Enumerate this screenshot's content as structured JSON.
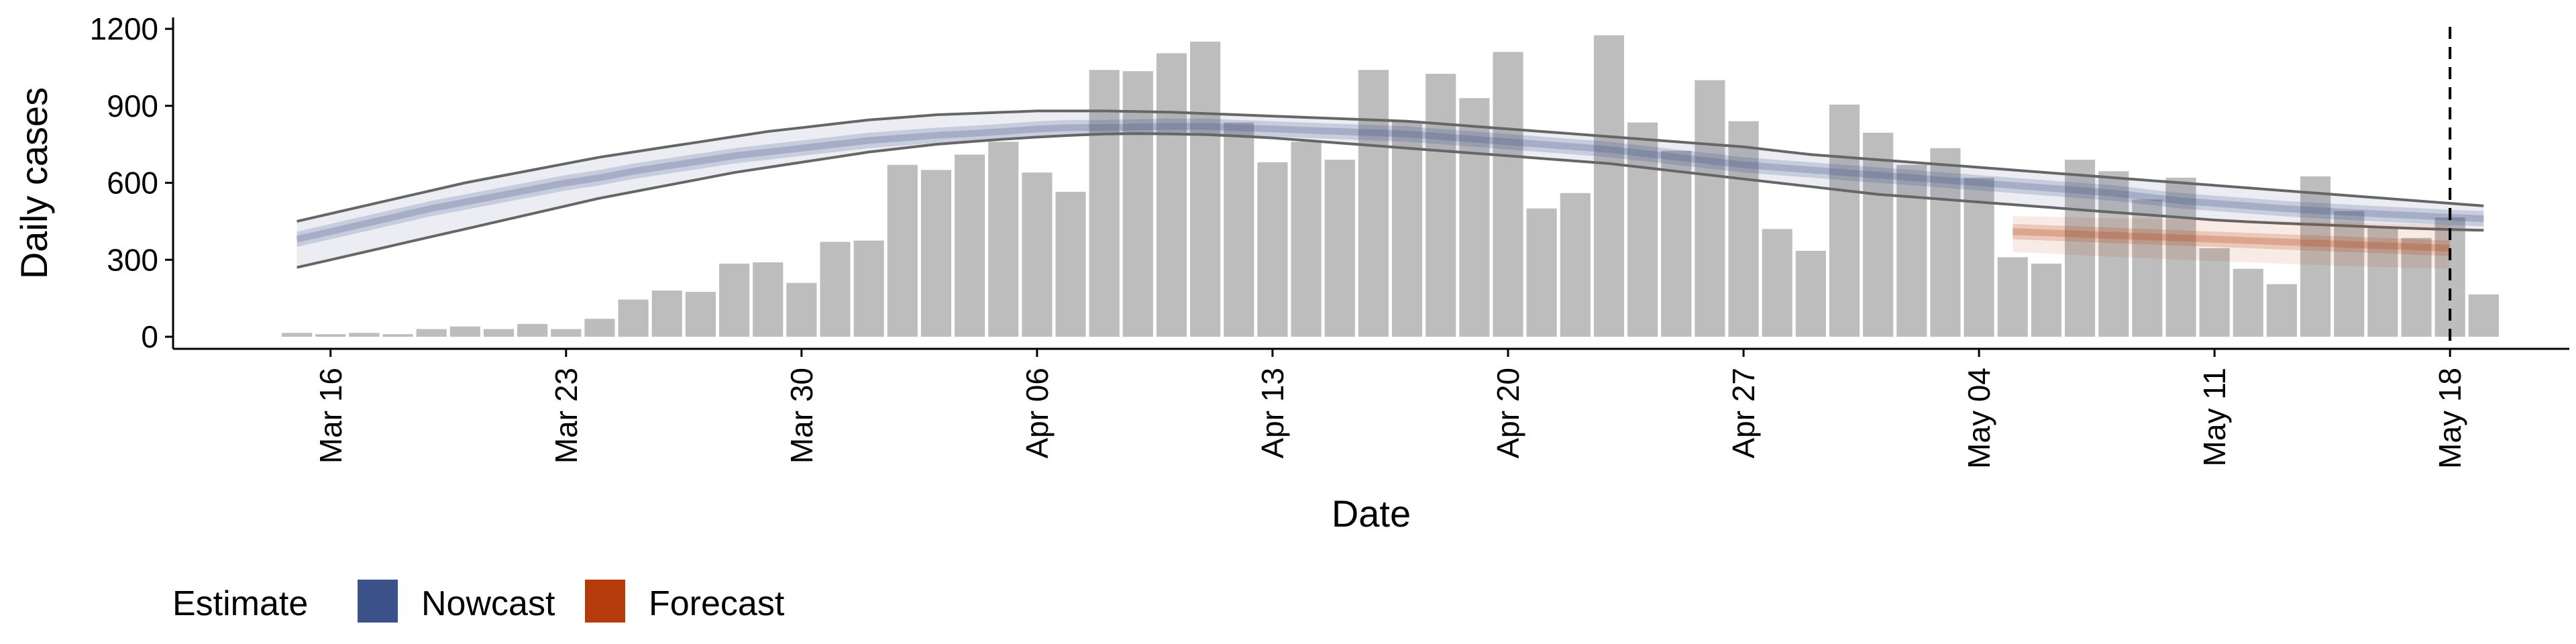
{
  "chart_data": {
    "type": "bar",
    "xlabel": "Date",
    "ylabel": "Daily cases",
    "ylim": [
      -50,
      1250
    ],
    "yticks": [
      0,
      300,
      600,
      900,
      1200
    ],
    "x_start": "2020-03-15",
    "x_end": "2020-05-18",
    "xticks": [
      {
        "date": "2020-03-16",
        "label": "Mar 16"
      },
      {
        "date": "2020-03-23",
        "label": "Mar 23"
      },
      {
        "date": "2020-03-30",
        "label": "Mar 30"
      },
      {
        "date": "2020-04-06",
        "label": "Apr 06"
      },
      {
        "date": "2020-04-13",
        "label": "Apr 13"
      },
      {
        "date": "2020-04-20",
        "label": "Apr 20"
      },
      {
        "date": "2020-04-27",
        "label": "Apr 27"
      },
      {
        "date": "2020-05-04",
        "label": "May 04"
      },
      {
        "date": "2020-05-11",
        "label": "May 11"
      },
      {
        "date": "2020-05-18",
        "label": "May 18"
      }
    ],
    "vline_date": "2020-05-18",
    "bar_color": "#bdbdbd",
    "daily_cases": [
      15,
      10,
      15,
      10,
      30,
      40,
      30,
      50,
      30,
      70,
      145,
      180,
      175,
      285,
      290,
      210,
      370,
      375,
      670,
      650,
      710,
      760,
      640,
      565,
      1040,
      1035,
      1105,
      1150,
      835,
      680,
      760,
      690,
      1040,
      840,
      1025,
      930,
      1110,
      500,
      560,
      1175,
      835,
      725,
      1000,
      840,
      420,
      335,
      905,
      795,
      670,
      735,
      620,
      310,
      285,
      690,
      645,
      535,
      620,
      345,
      265,
      205,
      625,
      490,
      425,
      385,
      465,
      165
    ],
    "series": [
      {
        "name": "Nowcast",
        "color": "#3b5189",
        "start": "2020-03-15",
        "median": [
          380,
          410,
          440,
          470,
          500,
          525,
          550,
          575,
          600,
          620,
          645,
          665,
          685,
          705,
          720,
          735,
          750,
          765,
          775,
          785,
          792,
          800,
          810,
          815,
          815,
          818,
          820,
          820,
          815,
          810,
          805,
          800,
          795,
          790,
          780,
          770,
          760,
          750,
          740,
          730,
          715,
          700,
          685,
          670,
          660,
          650,
          640,
          630,
          620,
          610,
          600,
          590,
          580,
          570,
          560,
          545,
          530,
          520,
          510,
          500,
          492,
          485,
          478,
          472,
          465,
          460
        ],
        "lower50": [
          350,
          380,
          410,
          440,
          470,
          495,
          520,
          545,
          570,
          590,
          615,
          635,
          655,
          675,
          690,
          705,
          720,
          735,
          745,
          755,
          765,
          772,
          780,
          785,
          785,
          788,
          790,
          790,
          785,
          780,
          775,
          770,
          765,
          760,
          750,
          740,
          730,
          720,
          710,
          700,
          685,
          670,
          655,
          640,
          630,
          620,
          610,
          600,
          590,
          580,
          570,
          560,
          550,
          540,
          530,
          515,
          500,
          490,
          480,
          470,
          462,
          455,
          448,
          442,
          435,
          430
        ],
        "upper50": [
          410,
          440,
          470,
          500,
          530,
          555,
          580,
          605,
          630,
          650,
          675,
          695,
          715,
          735,
          750,
          765,
          780,
          795,
          805,
          815,
          822,
          830,
          840,
          845,
          845,
          848,
          850,
          850,
          845,
          840,
          835,
          830,
          825,
          820,
          810,
          800,
          790,
          780,
          770,
          760,
          745,
          730,
          715,
          700,
          690,
          680,
          670,
          660,
          650,
          640,
          630,
          620,
          610,
          600,
          590,
          575,
          560,
          550,
          540,
          530,
          522,
          515,
          508,
          502,
          495,
          490
        ],
        "lower90": [
          270,
          300,
          330,
          360,
          390,
          420,
          450,
          480,
          510,
          540,
          565,
          590,
          615,
          640,
          660,
          680,
          700,
          720,
          735,
          750,
          760,
          770,
          778,
          785,
          790,
          792,
          790,
          788,
          782,
          775,
          765,
          755,
          745,
          735,
          725,
          715,
          705,
          695,
          685,
          675,
          660,
          645,
          630,
          615,
          600,
          585,
          570,
          555,
          545,
          535,
          525,
          515,
          505,
          495,
          485,
          475,
          465,
          455,
          448,
          442,
          437,
          432,
          427,
          422,
          418,
          415
        ],
        "upper90": [
          450,
          480,
          510,
          540,
          570,
          600,
          625,
          650,
          675,
          700,
          720,
          740,
          760,
          780,
          800,
          815,
          830,
          845,
          855,
          865,
          870,
          875,
          880,
          880,
          880,
          878,
          875,
          870,
          865,
          860,
          855,
          850,
          845,
          840,
          830,
          820,
          810,
          800,
          790,
          780,
          770,
          760,
          750,
          740,
          725,
          710,
          700,
          690,
          680,
          670,
          660,
          650,
          640,
          630,
          620,
          610,
          600,
          590,
          580,
          570,
          560,
          550,
          540,
          530,
          520,
          510
        ]
      },
      {
        "name": "Forecast",
        "color": "#b63b0c",
        "start": "2020-05-05",
        "median": [
          410,
          405,
          400,
          395,
          390,
          385,
          380,
          375,
          370,
          365,
          360,
          355,
          350,
          345
        ],
        "lower50": [
          380,
          375,
          370,
          365,
          360,
          355,
          350,
          345,
          340,
          335,
          330,
          325,
          320,
          315
        ],
        "upper50": [
          440,
          435,
          430,
          425,
          420,
          415,
          410,
          405,
          400,
          395,
          390,
          385,
          380,
          375
        ],
        "lower90": [
          330,
          325,
          318,
          312,
          306,
          300,
          295,
          290,
          285,
          280,
          275,
          272,
          268,
          265
        ],
        "upper90": [
          470,
          468,
          465,
          462,
          460,
          457,
          455,
          452,
          450,
          447,
          445,
          442,
          440,
          437
        ]
      }
    ],
    "legend": {
      "title": "Estimate",
      "placement": "bottom-left",
      "items": [
        {
          "label": "Nowcast",
          "color": "#3b5189"
        },
        {
          "label": "Forecast",
          "color": "#b63b0c"
        }
      ]
    }
  }
}
